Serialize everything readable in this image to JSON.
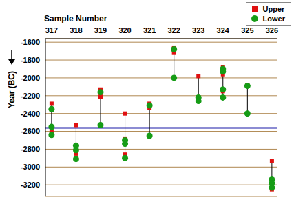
{
  "chart_data": {
    "type": "scatter",
    "x_label": "Sample Number",
    "y_label": "Year (BC)",
    "xlim": [
      316.75,
      326.2
    ],
    "xticks": [
      317,
      318,
      319,
      320,
      321,
      322,
      323,
      324,
      325,
      326
    ],
    "ylim": [
      -3330,
      -1560
    ],
    "yticks": [
      -3200,
      -3000,
      -2800,
      -2600,
      -2400,
      -2200,
      -2000,
      -1800,
      -1600
    ],
    "grid": true,
    "legend": "upper right",
    "reference_y": -2560,
    "series": [
      {
        "name": "Upper",
        "color": "#e01010",
        "marker": "square",
        "x": [
          317,
          317,
          317,
          318,
          318,
          319,
          319,
          320,
          320,
          320,
          321,
          321,
          322,
          322,
          323,
          323,
          324,
          324,
          324,
          325,
          326,
          326,
          326
        ],
        "values": [
          -2290,
          -2360,
          -2600,
          -2530,
          -2850,
          -2130,
          -2210,
          -2400,
          -2680,
          -2860,
          -2290,
          -2340,
          -1660,
          -1720,
          -1980,
          -2250,
          -1880,
          -1960,
          -2150,
          -2080,
          -2930,
          -3200,
          -3250
        ]
      },
      {
        "name": "Lower",
        "color": "#169c16",
        "marker": "circle",
        "x": [
          317,
          317,
          317,
          318,
          318,
          318,
          319,
          319,
          320,
          320,
          320,
          321,
          321,
          322,
          322,
          323,
          323,
          324,
          324,
          324,
          324,
          325,
          325,
          326,
          326,
          326
        ],
        "values": [
          -2350,
          -2550,
          -2640,
          -2760,
          -2810,
          -2910,
          -2160,
          -2530,
          -2700,
          -2740,
          -2900,
          -2310,
          -2650,
          -1680,
          -2000,
          -2220,
          -2260,
          -1900,
          -1930,
          -2130,
          -2220,
          -2090,
          -2400,
          -3140,
          -3180,
          -3230
        ]
      }
    ]
  }
}
